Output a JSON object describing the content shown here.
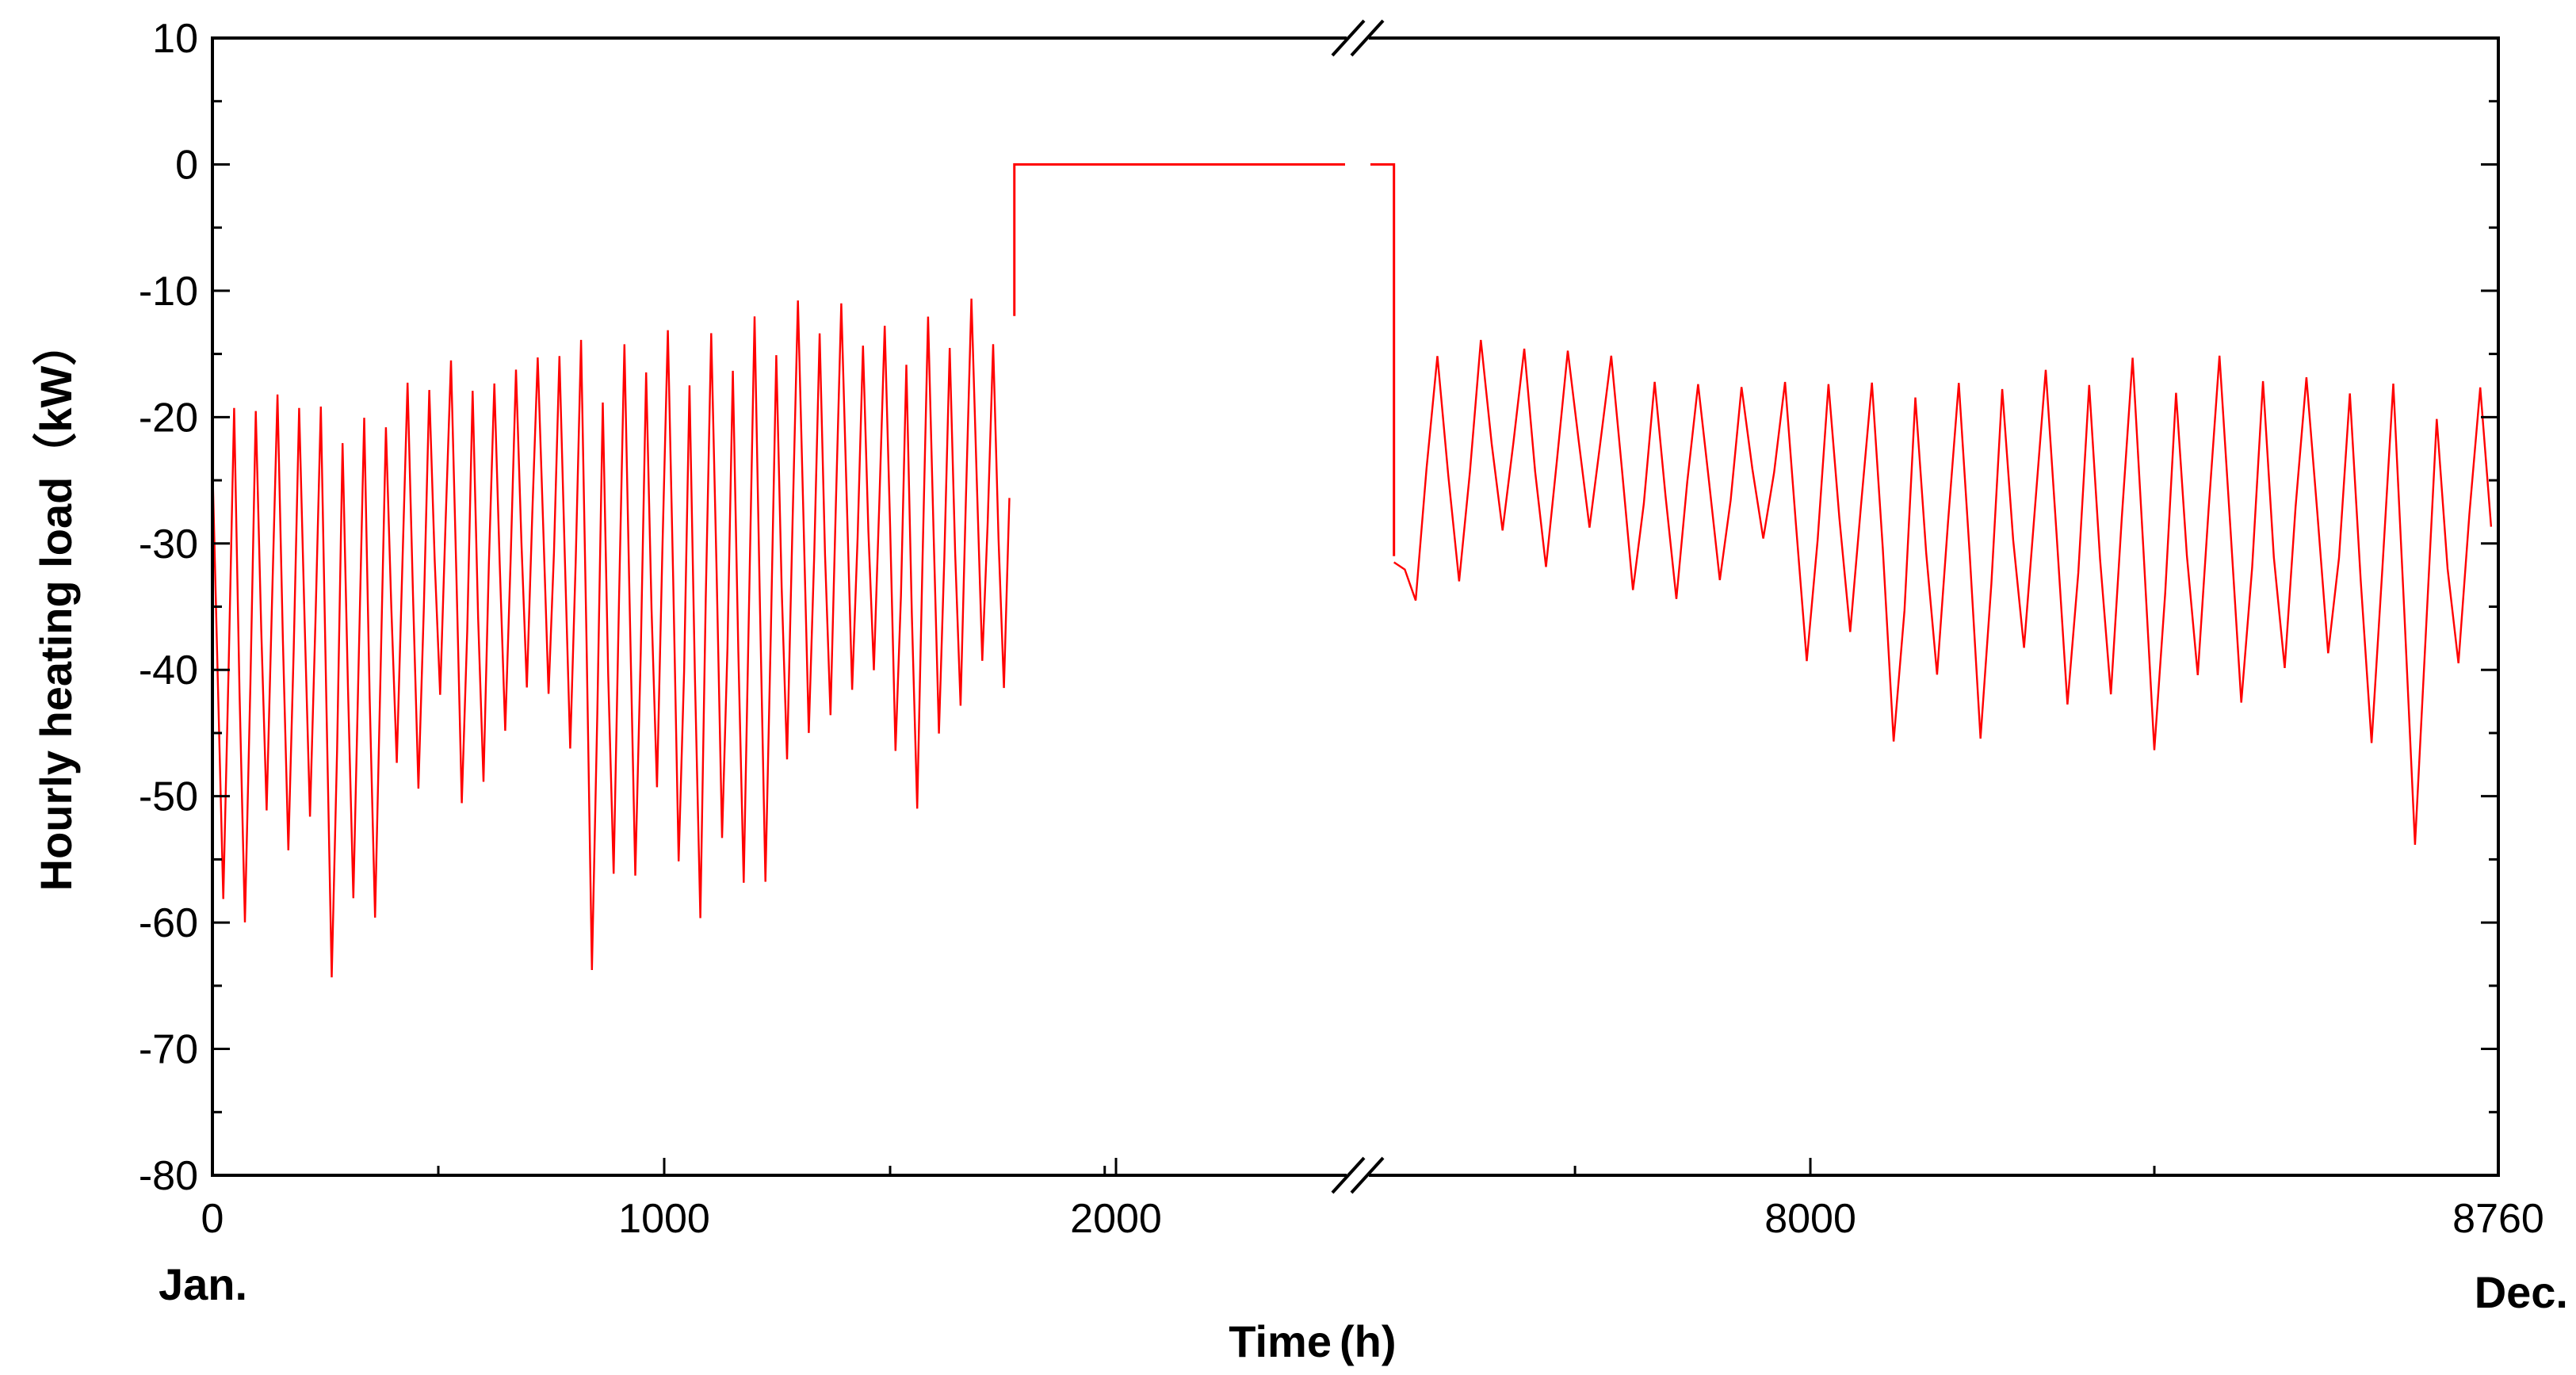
{
  "chart_data": {
    "type": "line",
    "title": "",
    "xlabel": "Time",
    "xlabel_unit": "(h)",
    "ylabel": "Hourly heating load（kW）",
    "ylim": [
      -80,
      10
    ],
    "yticks": [
      "10",
      "0",
      "-10",
      "-20",
      "-30",
      "-40",
      "-50",
      "-60",
      "-70",
      "-80"
    ],
    "xlim": [
      0,
      8760
    ],
    "xticks": [
      "0",
      "1000",
      "2000",
      "8000",
      "8760"
    ],
    "x_axis_break": [
      2250,
      7500
    ],
    "month_labels": {
      "start": "Jan.",
      "end": "Dec."
    },
    "grid": false,
    "legend": "none",
    "series_color": "#ff0000",
    "series": [
      {
        "segments": [
          {
            "x_start": 0,
            "x_end": 1775,
            "y_top": [
              -22,
              -18,
              -17,
              -18,
              -17,
              -17,
              -18,
              -18,
              -20,
              -19,
              -19,
              -19,
              -17,
              -16,
              -16,
              -15,
              -15,
              -16,
              -17,
              -14,
              -15,
              -15,
              -13,
              -14,
              -13,
              -16,
              -14,
              -14,
              -13,
              -13,
              -14,
              -14,
              -13,
              -13,
              -12,
              -12,
              -12,
              -11,
              -10,
              -11,
              -11,
              -12,
              -12,
              -13,
              -13,
              -12,
              -12,
              -12,
              -10,
              -12,
              -12,
              -11
            ],
            "y_bottom": [
              -65,
              -67,
              -60,
              -60,
              -56,
              -54,
              -58,
              -61,
              -67,
              -66,
              -63,
              -54,
              -53,
              -50,
              -48,
              -46,
              -52,
              -57,
              -48,
              -44,
              -46,
              -42,
              -44,
              -54,
              -66,
              -64,
              -61,
              -58,
              -55,
              -53,
              -60,
              -66,
              -54,
              -59,
              -63,
              -62,
              -52,
              -50,
              -48,
              -47,
              -46,
              -44,
              -42,
              -48,
              -53,
              -54,
              -50,
              -46,
              -44,
              -43,
              -43,
              -43
            ]
          },
          {
            "x": [
              1775,
              1775,
              7540,
              7540
            ],
            "y": [
              -12,
              0,
              0,
              -31
            ]
          },
          {
            "x_start": 7540,
            "x_end": 8760,
            "y_top": [
              -31,
              -15,
              -14,
              -13,
              -14,
              -14,
              -14,
              -14,
              -15,
              -16,
              -17,
              -17,
              -17,
              -16,
              -17,
              -16,
              -16,
              -17,
              -17,
              -16,
              -17,
              -15,
              -17,
              -16,
              -16,
              -15,
              -15,
              -16,
              -16,
              -15,
              -15,
              -15,
              -17,
              -16,
              -16,
              -17,
              -18,
              -18,
              -18,
              -17
            ],
            "y_bottom": [
              -44,
              -36,
              -33,
              -33,
              -32,
              -33,
              -30,
              -32,
              -32,
              -36,
              -38,
              -32,
              -34,
              -32,
              -39,
              -40,
              -41,
              -41,
              -49,
              -45,
              -44,
              -47,
              -42,
              -42,
              -44,
              -47,
              -45,
              -48,
              -45,
              -43,
              -44,
              -46,
              -40,
              -40,
              -47,
              -52,
              -57,
              -45,
              -40,
              -43
            ]
          }
        ]
      }
    ]
  }
}
